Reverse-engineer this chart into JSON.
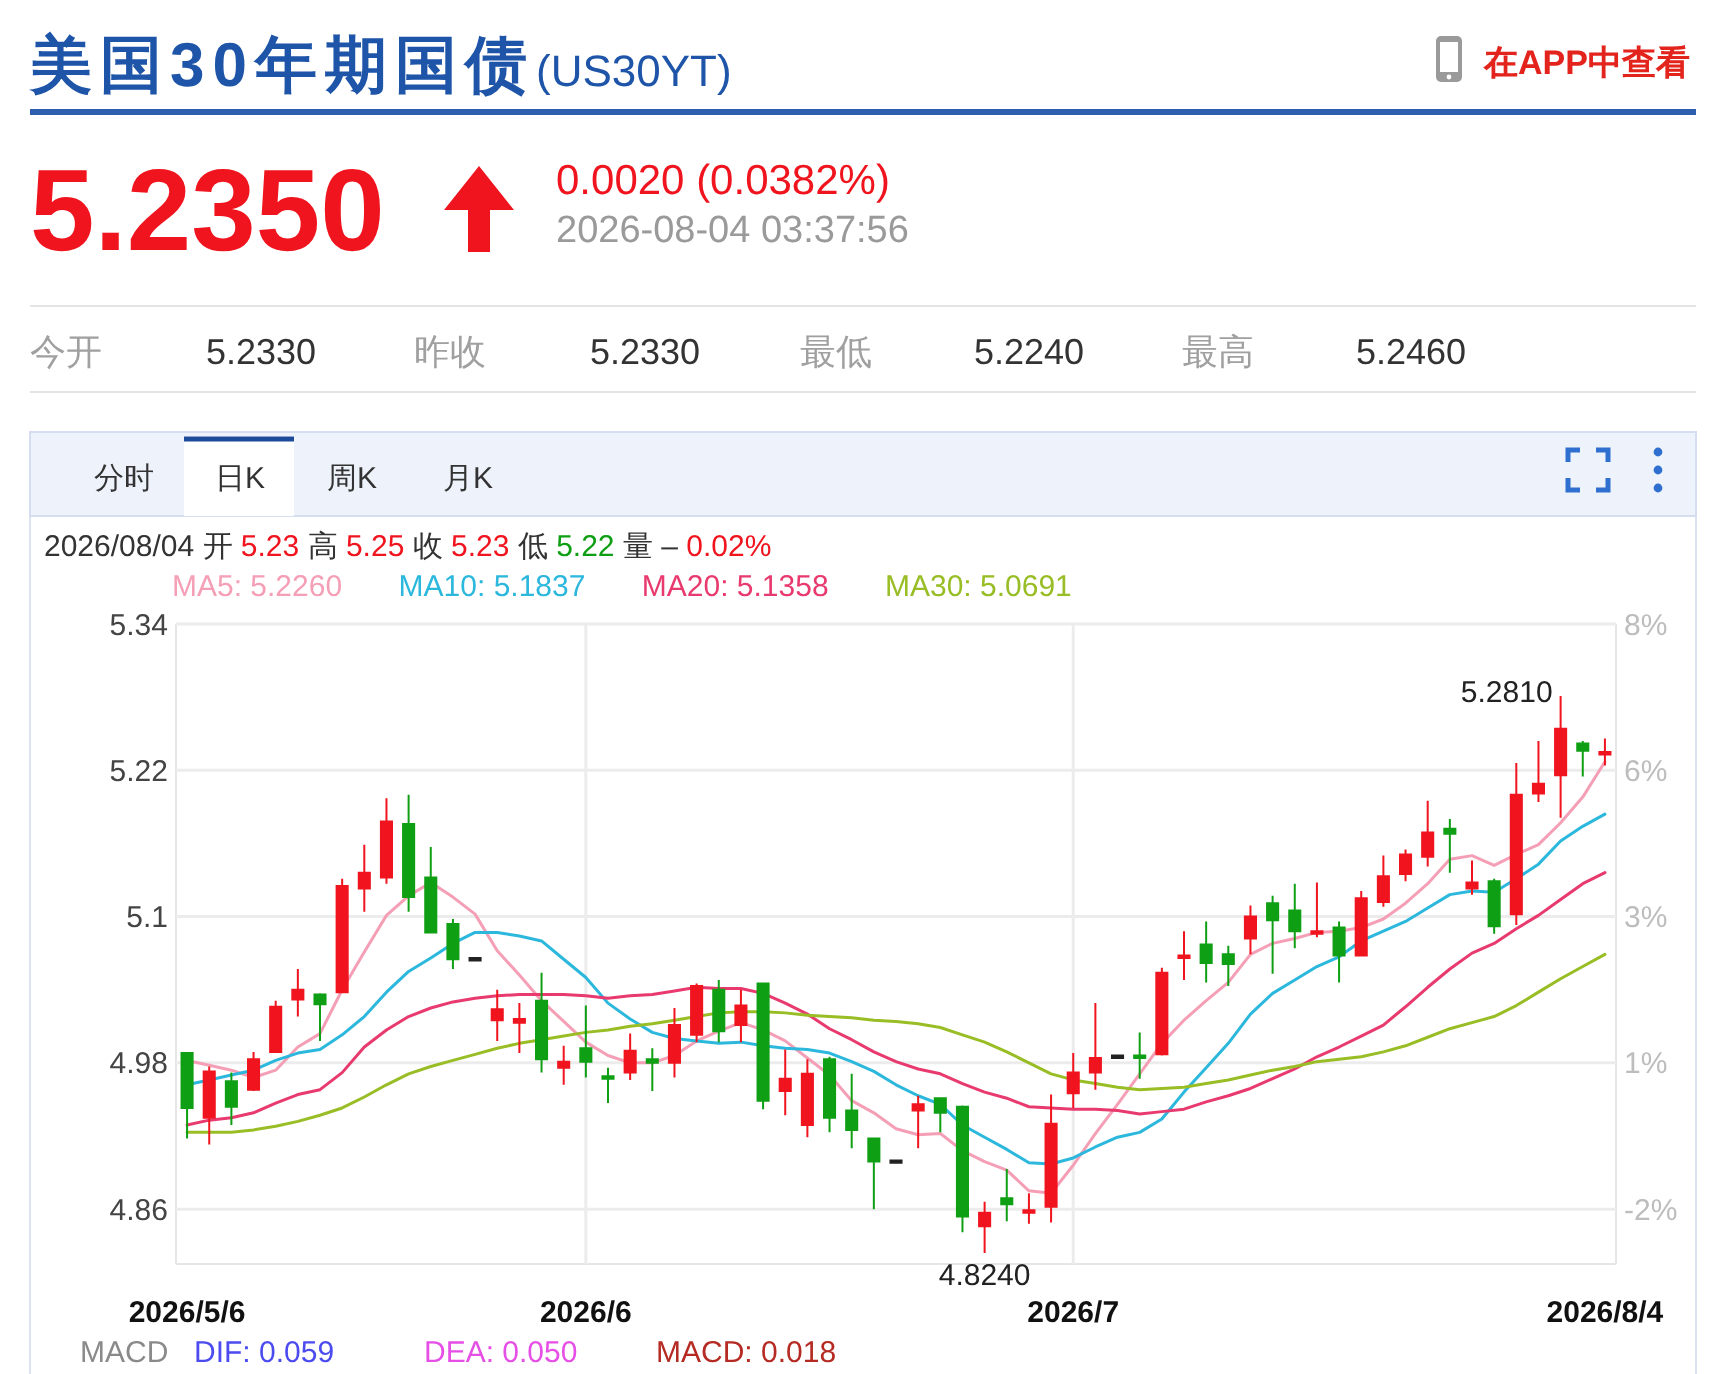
{
  "chart_data": [
    {
      "type": "other",
      "title": "美国30年期国债",
      "subtitle": "(US30YT)",
      "annotations": [
        "在APP中查看",
        "5.2350",
        "0.0020 (0.0382%)",
        "2026-08-04 03:37:56",
        "今开",
        "5.2330",
        "昨收",
        "5.2330",
        "最低",
        "5.2240",
        "最高",
        "5.2460",
        "分时",
        "日K",
        "周K",
        "月K"
      ]
    },
    {
      "type": "candlestick",
      "categories": [
        "2026/5/6",
        null,
        null,
        null,
        null,
        null,
        null,
        null,
        null,
        null,
        null,
        null,
        null,
        null,
        null,
        null,
        null,
        null,
        "2026/6",
        null,
        null,
        null,
        null,
        null,
        null,
        null,
        null,
        null,
        null,
        null,
        null,
        null,
        null,
        null,
        null,
        null,
        null,
        null,
        null,
        null,
        "2026/7",
        null,
        null,
        null,
        null,
        null,
        null,
        null,
        null,
        null,
        null,
        null,
        null,
        null,
        null,
        null,
        null,
        null,
        null,
        null,
        null,
        null,
        null,
        null,
        "2026/8/4"
      ],
      "ohlc": [
        [
          4.988,
          4.988,
          4.918,
          4.943
        ],
        [
          4.935,
          4.977,
          4.913,
          4.973
        ],
        [
          4.965,
          4.972,
          4.929,
          4.944
        ],
        [
          4.958,
          4.989,
          4.957,
          4.983
        ],
        [
          4.989,
          5.031,
          4.988,
          5.026
        ],
        [
          5.032,
          5.057,
          5.018,
          5.04
        ],
        [
          5.036,
          5.037,
          4.998,
          5.028
        ],
        [
          5.038,
          5.131,
          5.037,
          5.125
        ],
        [
          5.123,
          5.159,
          5.104,
          5.136
        ],
        [
          5.132,
          5.197,
          5.127,
          5.178
        ],
        [
          5.176,
          5.2,
          5.104,
          5.116
        ],
        [
          5.132,
          5.157,
          5.087,
          5.087
        ],
        [
          5.094,
          5.098,
          5.057,
          5.065
        ],
        [
          5.066,
          5.066,
          5.066,
          5.066
        ],
        [
          5.015,
          5.04,
          4.998,
          5.024
        ],
        [
          5.013,
          5.029,
          4.988,
          5.016
        ],
        [
          5.031,
          5.054,
          4.972,
          4.983
        ],
        [
          4.976,
          4.994,
          4.962,
          4.981
        ],
        [
          4.992,
          5.027,
          4.968,
          4.981
        ],
        [
          4.969,
          4.976,
          4.947,
          4.967
        ],
        [
          4.972,
          5.004,
          4.966,
          4.99
        ],
        [
          4.983,
          4.992,
          4.957,
          4.98
        ],
        [
          4.98,
          5.025,
          4.968,
          5.011
        ],
        [
          5.003,
          5.045,
          4.997,
          5.043
        ],
        [
          5.04,
          5.048,
          4.997,
          5.006
        ],
        [
          5.011,
          5.04,
          4.997,
          5.027
        ],
        [
          5.045,
          5.045,
          4.942,
          4.949
        ],
        [
          4.957,
          4.991,
          4.937,
          4.967
        ],
        [
          4.929,
          4.983,
          4.919,
          4.971
        ],
        [
          4.983,
          4.985,
          4.923,
          4.935
        ],
        [
          4.941,
          4.971,
          4.91,
          4.925
        ],
        [
          4.918,
          4.918,
          4.86,
          4.899
        ],
        [
          4.9,
          4.9,
          4.9,
          4.9
        ],
        [
          4.941,
          4.953,
          4.91,
          4.946
        ],
        [
          4.951,
          4.951,
          4.923,
          4.939
        ],
        [
          4.944,
          4.945,
          4.841,
          4.854
        ],
        [
          4.846,
          4.866,
          4.824,
          4.857
        ],
        [
          4.869,
          4.893,
          4.85,
          4.864
        ],
        [
          4.858,
          4.873,
          4.848,
          4.859
        ],
        [
          4.862,
          4.954,
          4.849,
          4.93
        ],
        [
          4.955,
          4.988,
          4.943,
          4.972
        ],
        [
          4.972,
          5.029,
          4.958,
          4.984
        ],
        [
          4.986,
          4.986,
          4.986,
          4.986
        ],
        [
          4.986,
          5.005,
          4.967,
          4.984
        ],
        [
          4.987,
          5.058,
          4.986,
          5.054
        ],
        [
          5.067,
          5.088,
          5.048,
          5.068
        ],
        [
          5.077,
          5.096,
          5.046,
          5.062
        ],
        [
          5.069,
          5.076,
          5.043,
          5.061
        ],
        [
          5.082,
          5.109,
          5.069,
          5.1
        ],
        [
          5.111,
          5.117,
          5.053,
          5.097
        ],
        [
          5.105,
          5.127,
          5.074,
          5.088
        ],
        [
          5.086,
          5.128,
          5.083,
          5.088
        ],
        [
          5.091,
          5.096,
          5.046,
          5.068
        ],
        [
          5.068,
          5.121,
          5.068,
          5.115
        ],
        [
          5.112,
          5.15,
          5.108,
          5.133
        ],
        [
          5.135,
          5.155,
          5.129,
          5.151
        ],
        [
          5.149,
          5.195,
          5.141,
          5.169
        ],
        [
          5.172,
          5.18,
          5.136,
          5.168
        ],
        [
          5.123,
          5.146,
          5.118,
          5.128
        ],
        [
          5.129,
          5.131,
          5.086,
          5.092
        ],
        [
          5.102,
          5.226,
          5.093,
          5.2
        ],
        [
          5.201,
          5.244,
          5.194,
          5.209
        ],
        [
          5.216,
          5.281,
          5.181,
          5.254
        ],
        [
          5.242,
          5.244,
          5.215,
          5.236
        ],
        [
          5.233,
          5.246,
          5.224,
          5.235
        ]
      ],
      "series": [
        {
          "name": "MA5: 5.2260",
          "type": "line",
          "color": "#f59fb6",
          "values": [
            4.982,
            4.978,
            4.974,
            4.968,
            4.974,
            4.993,
            5.004,
            5.04,
            5.071,
            5.101,
            5.117,
            5.128,
            5.116,
            5.102,
            5.072,
            5.052,
            5.031,
            5.014,
            4.997,
            4.986,
            4.98,
            4.98,
            4.986,
            4.998,
            5.006,
            5.013,
            5.007,
            4.998,
            4.984,
            4.97,
            4.949,
            4.939,
            4.926,
            4.921,
            4.922,
            4.908,
            4.899,
            4.892,
            4.875,
            4.873,
            4.896,
            4.922,
            4.946,
            4.971,
            4.996,
            5.015,
            5.031,
            5.046,
            5.069,
            5.078,
            5.082,
            5.087,
            5.088,
            5.091,
            5.098,
            5.111,
            5.127,
            5.147,
            5.15,
            5.142,
            5.151,
            5.159,
            5.177,
            5.198,
            5.227
          ]
        },
        {
          "name": "MA10: 5.1837",
          "type": "line",
          "color": "#2cb7dd",
          "values": [
            4.962,
            4.966,
            4.97,
            4.974,
            4.982,
            4.988,
            4.991,
            5.003,
            5.018,
            5.038,
            5.055,
            5.066,
            5.078,
            5.087,
            5.087,
            5.084,
            5.08,
            5.065,
            5.05,
            5.029,
            5.016,
            5.005,
            5.0,
            4.998,
            4.996,
            4.997,
            4.994,
            4.992,
            4.991,
            4.988,
            4.981,
            4.973,
            4.962,
            4.953,
            4.946,
            4.929,
            4.919,
            4.909,
            4.898,
            4.897,
            4.902,
            4.911,
            4.919,
            4.923,
            4.934,
            4.956,
            4.976,
            4.996,
            5.02,
            5.037,
            5.048,
            5.059,
            5.067,
            5.08,
            5.088,
            5.096,
            5.107,
            5.118,
            5.121,
            5.12,
            5.131,
            5.143,
            5.162,
            5.174,
            5.184
          ]
        },
        {
          "name": "MA20: 5.1358",
          "type": "line",
          "color": "#e83a6e",
          "values": [
            4.929,
            4.933,
            4.935,
            4.939,
            4.947,
            4.954,
            4.958,
            4.972,
            4.993,
            5.007,
            5.018,
            5.025,
            5.03,
            5.033,
            5.035,
            5.036,
            5.036,
            5.036,
            5.035,
            5.033,
            5.035,
            5.036,
            5.039,
            5.042,
            5.041,
            5.041,
            5.037,
            5.029,
            5.02,
            5.008,
            4.999,
            4.989,
            4.981,
            4.975,
            4.971,
            4.963,
            4.956,
            4.951,
            4.944,
            4.943,
            4.942,
            4.942,
            4.941,
            4.938,
            4.94,
            4.942,
            4.948,
            4.953,
            4.959,
            4.967,
            4.975,
            4.985,
            4.993,
            5.002,
            5.011,
            5.026,
            5.042,
            5.057,
            5.07,
            5.078,
            5.09,
            5.101,
            5.114,
            5.127,
            5.136
          ]
        },
        {
          "name": "MA30: 5.0691",
          "type": "line",
          "color": "#98bd25",
          "values": [
            4.923,
            4.923,
            4.923,
            4.925,
            4.928,
            4.932,
            4.937,
            4.943,
            4.952,
            4.962,
            4.971,
            4.977,
            4.982,
            4.987,
            4.992,
            4.996,
            4.999,
            5.002,
            5.005,
            5.007,
            5.01,
            5.012,
            5.015,
            5.018,
            5.021,
            5.022,
            5.022,
            5.021,
            5.019,
            5.018,
            5.017,
            5.015,
            5.014,
            5.012,
            5.009,
            5.003,
            4.997,
            4.989,
            4.98,
            4.971,
            4.966,
            4.963,
            4.96,
            4.958,
            4.959,
            4.96,
            4.963,
            4.966,
            4.97,
            4.974,
            4.977,
            4.981,
            4.983,
            4.985,
            4.989,
            4.994,
            5.001,
            5.008,
            5.013,
            5.018,
            5.027,
            5.038,
            5.049,
            5.059,
            5.069
          ]
        }
      ],
      "ylim": [
        4.815,
        5.34
      ],
      "yticks": [
        4.86,
        4.98,
        5.1,
        5.22,
        5.34
      ],
      "y2lim": [
        -2.53,
        8.1
      ],
      "y2ticks": [
        {
          "value": -1.62,
          "label": "-2%"
        },
        {
          "value": 0.81,
          "label": "1%"
        },
        {
          "value": 3.24,
          "label": "3%"
        },
        {
          "value": 5.67,
          "label": "6%"
        },
        {
          "value": 8.1,
          "label": "8%"
        }
      ],
      "grid": true,
      "legend": "top left",
      "annotations": [
        "2026/08/04 开 5.23 高 5.25 收 5.23 低 5.22 量 – 0.02%",
        "5.2810",
        "4.8240",
        "MACD",
        "DIF: 0.059",
        "DEA: 0.050",
        "MACD: 0.018"
      ]
    }
  ]
}
